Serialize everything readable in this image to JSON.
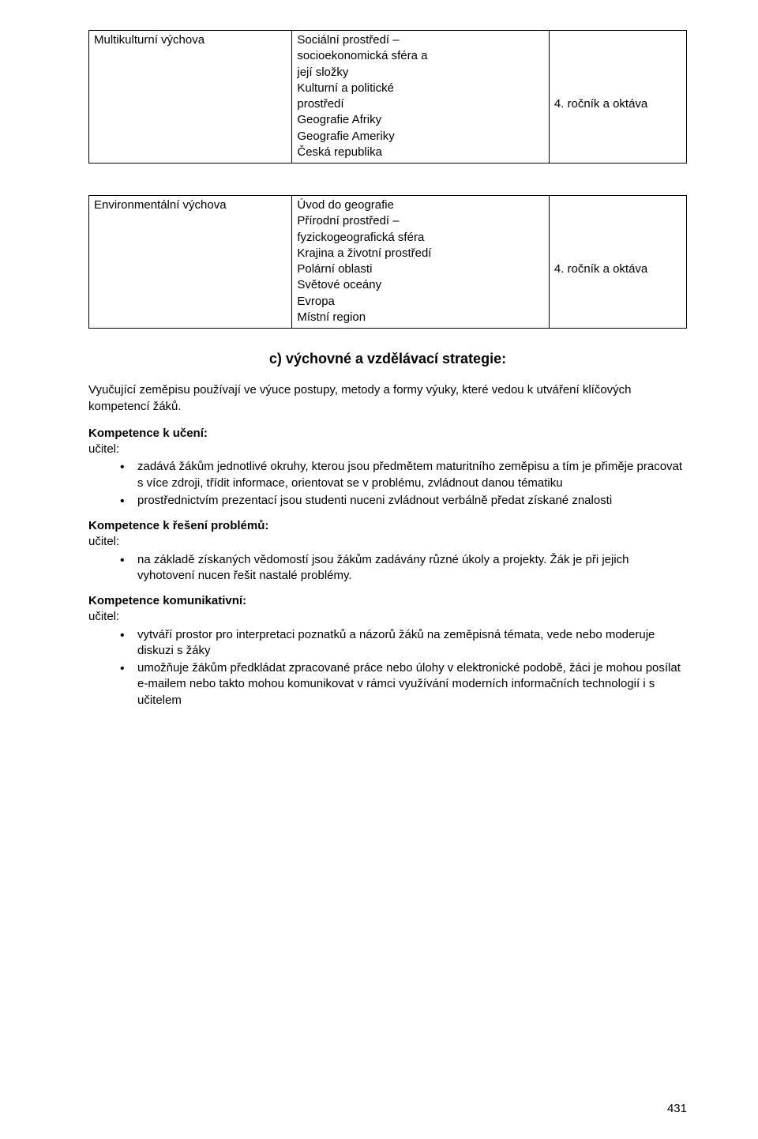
{
  "table1": {
    "row0": {
      "c0": "Multikulturní výchova",
      "c1": "Sociální prostředí –\nsocioekonomická sféra a\njejí složky\nKulturní a politické\nprostředí\nGeografie Afriky\nGeografie Ameriky\nČeská republika",
      "c2": "\n\n\n\n4. ročník a oktáva"
    }
  },
  "table2": {
    "row0": {
      "c0": "Environmentální výchova",
      "c1": "Úvod do geografie\nPřírodní prostředí –\nfyzickogeografická sféra\nKrajina a životní prostředí\nPolární oblasti\nSvětové oceány\nEvropa\nMístní region",
      "c2": "\n\n\n\n4. ročník a oktáva"
    }
  },
  "section_c_title": "c) výchovné a vzdělávací strategie:",
  "lead_para": "Vyučující zeměpisu používají ve výuce postupy, metody a formy výuky, které vedou k utváření klíčových kompetencí žáků.",
  "groups": {
    "g0": {
      "title": "Kompetence k učení:",
      "sub": "učitel:",
      "items": {
        "i0": "zadává žákům jednotlivé okruhy, kterou jsou předmětem maturitního zeměpisu a tím je přiměje pracovat s více zdroji, třídit informace, orientovat se v problému, zvládnout danou tématiku",
        "i1": "prostřednictvím prezentací jsou studenti nuceni zvládnout verbálně předat získané znalosti"
      }
    },
    "g1": {
      "title": "Kompetence k řešení problémů:",
      "sub": "učitel:",
      "items": {
        "i0": "na základě získaných vědomostí jsou žákům zadávány různé úkoly a projekty. Žák je při jejich vyhotovení nucen řešit nastalé problémy."
      }
    },
    "g2": {
      "title": "Kompetence komunikativní:",
      "sub": "učitel:",
      "items": {
        "i0": "vytváří prostor pro interpretaci poznatků a názorů žáků na zeměpisná témata, vede nebo moderuje diskuzi s žáky",
        "i1": "umožňuje žákům předkládat zpracované práce nebo úlohy v elektronické podobě, žáci je mohou posílat e-mailem nebo takto mohou komunikovat v rámci využívání moderních informačních technologií i s učitelem"
      }
    }
  },
  "page_number": "431"
}
